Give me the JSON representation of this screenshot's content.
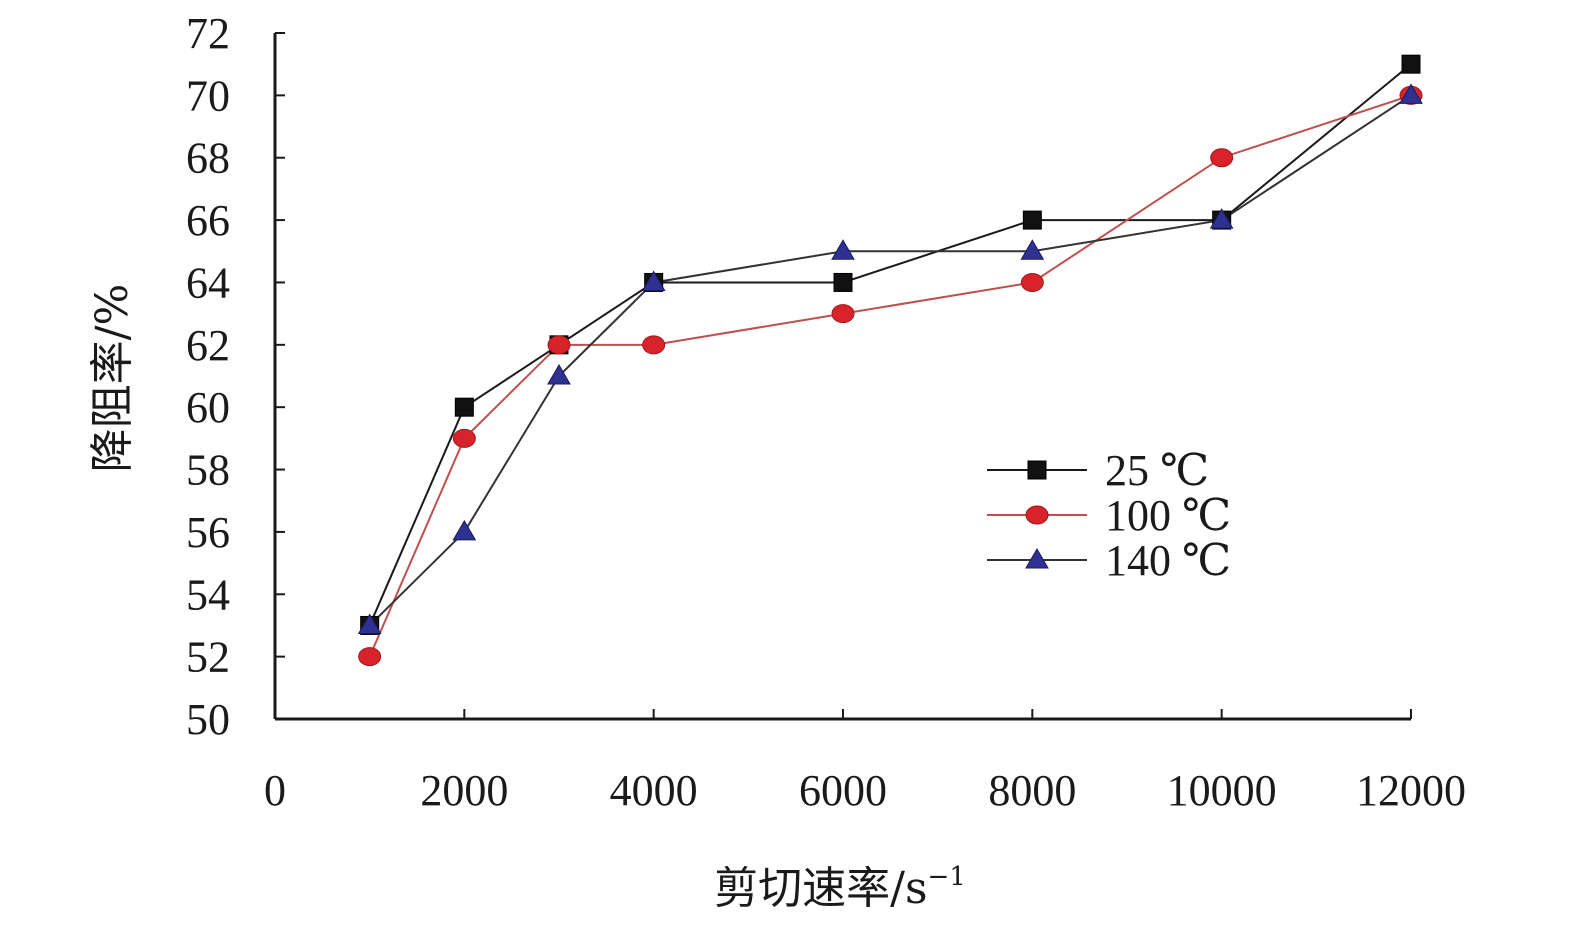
{
  "chart_data": {
    "type": "line",
    "xlabel": "剪切速率/s",
    "xlabel_sup": "−1",
    "ylabel": "降阻率/%",
    "xlim": [
      0,
      12000
    ],
    "ylim": [
      50,
      72
    ],
    "x_ticks": [
      "0",
      "2000",
      "4000",
      "6000",
      "8000",
      "10000",
      "12000"
    ],
    "y_ticks": [
      "50",
      "52",
      "54",
      "56",
      "58",
      "60",
      "62",
      "64",
      "66",
      "68",
      "70",
      "72"
    ],
    "grid": false,
    "legend_position": "center-right",
    "x": [
      1000,
      2000,
      3000,
      4000,
      6000,
      8000,
      10000,
      12000
    ],
    "series": [
      {
        "name": "25 ℃",
        "values": [
          53,
          60,
          62,
          64,
          64,
          66,
          66,
          71
        ],
        "marker": "square",
        "marker_color": "#111111",
        "line_color": "#1a1a1a"
      },
      {
        "name": "100 ℃",
        "values": [
          52,
          59,
          62,
          62,
          63,
          64,
          68,
          70
        ],
        "marker": "circle",
        "marker_color": "#d8232a",
        "line_color": "#c0504d"
      },
      {
        "name": "140 ℃",
        "values": [
          53,
          56,
          61,
          64,
          65,
          65,
          66,
          70
        ],
        "marker": "triangle",
        "marker_color": "#2e3192",
        "line_color": "#333333"
      }
    ]
  }
}
